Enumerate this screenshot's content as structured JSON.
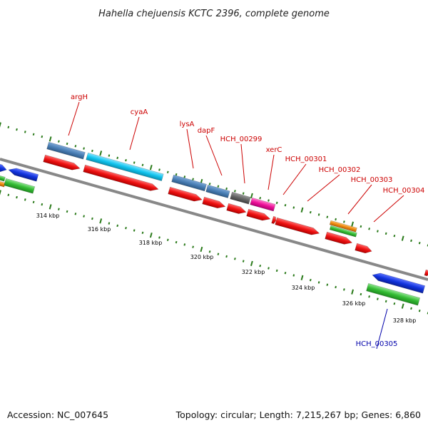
{
  "title": "Hahella chejuensis KCTC 2396, complete genome",
  "footer": {
    "accession": "Accession: NC_007645",
    "summary": "Topology: circular; Length: 7,215,267 bp; Genes: 6,860"
  },
  "colors": {
    "backbone": "#888888",
    "forward_dots": "#2a7a1a",
    "reverse_dots": "#2a7a1a",
    "cds_red": "#ee1111",
    "steelblue": "#4a7fb5",
    "cyan": "#11c4ee",
    "blue": "#1133dd",
    "green": "#33bb33",
    "orange": "#ee8811",
    "magenta": "#ee1199",
    "darkgray": "#666666",
    "label_red": "#cc0000",
    "label_blue": "#0000aa"
  },
  "scale_ticks": [
    {
      "label": "314 kbp"
    },
    {
      "label": "316 kbp"
    },
    {
      "label": "318 kbp"
    },
    {
      "label": "320 kbp"
    },
    {
      "label": "322 kbp"
    },
    {
      "label": "324 kbp"
    },
    {
      "label": "326 kbp"
    },
    {
      "label": "328 kbp"
    }
  ],
  "gene_labels": [
    {
      "name": "argH",
      "color": "red"
    },
    {
      "name": "cyaA",
      "color": "red"
    },
    {
      "name": "lysA",
      "color": "red"
    },
    {
      "name": "dapF",
      "color": "red"
    },
    {
      "name": "HCH_00299",
      "color": "red"
    },
    {
      "name": "xerC",
      "color": "red"
    },
    {
      "name": "HCH_00301",
      "color": "red"
    },
    {
      "name": "HCH_00302",
      "color": "red"
    },
    {
      "name": "HCH_00303",
      "color": "red"
    },
    {
      "name": "HCH_00304",
      "color": "red"
    },
    {
      "name": "HCH_00305",
      "color": "blue"
    }
  ]
}
